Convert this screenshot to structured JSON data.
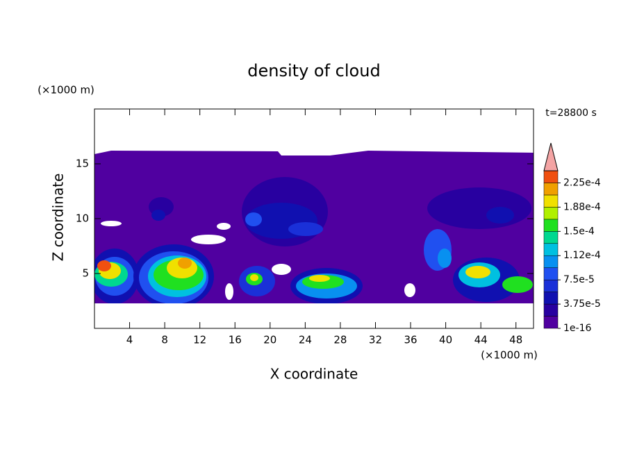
{
  "chart_data": {
    "type": "contour",
    "title": "density of cloud",
    "y_unit": "(×1000 m)",
    "x_unit": "(×1000 m)",
    "time_label": "t=28800 s",
    "xlabel": "X coordinate",
    "ylabel": "Z coordinate",
    "xlim": [
      0,
      50
    ],
    "ylim": [
      0,
      20
    ],
    "xticks": [
      4,
      8,
      12,
      16,
      20,
      24,
      28,
      32,
      36,
      40,
      44,
      48
    ],
    "yticks": [
      5,
      10,
      15
    ],
    "colorbar": {
      "levels": [
        1e-16,
        1.875e-05,
        3.75e-05,
        5.625e-05,
        7.5e-05,
        9.375e-05,
        0.0001125,
        0.00013125,
        0.00015,
        0.00016875,
        0.0001875,
        0.00020625,
        0.000225,
        0.00024375
      ],
      "colors": [
        "#5000a0",
        "#2800a0",
        "#1010b0",
        "#1a30d8",
        "#2050f0",
        "#0890f0",
        "#00c0e0",
        "#00d890",
        "#20e020",
        "#b0f000",
        "#f0e000",
        "#f0a000",
        "#f05010"
      ],
      "extend_color": "#f4a4a4",
      "ticks": [
        {
          "value": 1e-16,
          "label": "1e-16"
        },
        {
          "value": 3.75e-05,
          "label": "3.75e-5"
        },
        {
          "value": 7.5e-05,
          "label": "7.5e-5"
        },
        {
          "value": 0.0001125,
          "label": "1.12e-4"
        },
        {
          "value": 0.00015,
          "label": "1.5e-4"
        },
        {
          "value": 0.0001875,
          "label": "1.88e-4"
        },
        {
          "value": 0.000225,
          "label": "2.25e-4"
        }
      ]
    }
  }
}
